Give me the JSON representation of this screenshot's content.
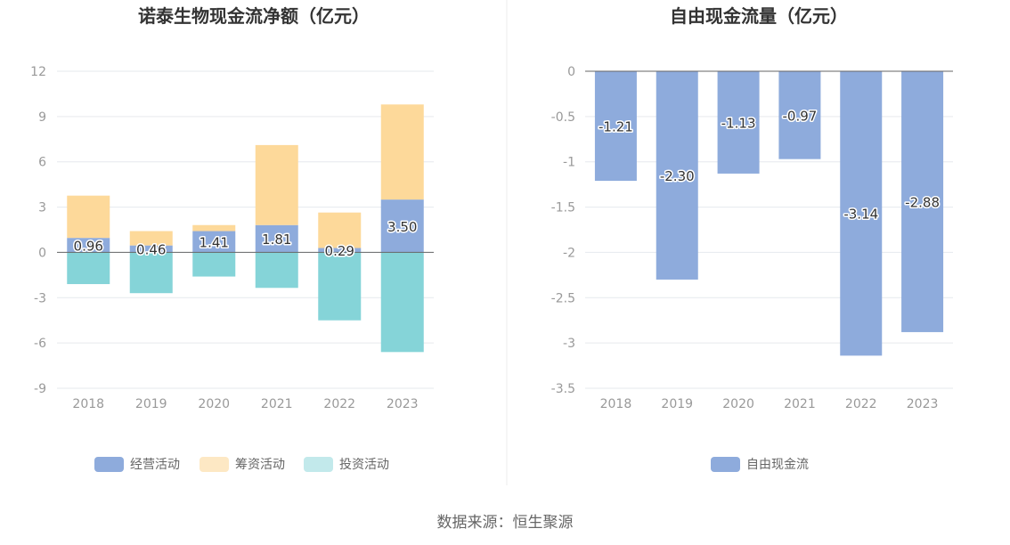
{
  "chart_data": [
    {
      "type": "bar",
      "stacked": true,
      "title": "诺泰生物现金流净额（亿元）",
      "categories": [
        "2018",
        "2019",
        "2020",
        "2021",
        "2022",
        "2023"
      ],
      "y_ticks": [
        "12",
        "9",
        "6",
        "3",
        "0",
        "-3",
        "-6",
        "-9"
      ],
      "ylim": [
        -9,
        12
      ],
      "grid": true,
      "legend_position": "bottom",
      "series": [
        {
          "name": "经营活动",
          "color": "#8eabdc",
          "values": [
            0.96,
            0.46,
            1.41,
            1.81,
            0.29,
            3.5
          ],
          "labels": [
            "0.96",
            "0.46",
            "1.41",
            "1.81",
            "0.29",
            "3.50"
          ]
        },
        {
          "name": "筹资活动",
          "color": "#fdd99a",
          "values": [
            2.8,
            0.95,
            0.4,
            5.3,
            2.35,
            6.3
          ]
        },
        {
          "name": "投资活动",
          "color": "#85d4d8",
          "values": [
            -2.1,
            -2.7,
            -1.6,
            -2.35,
            -4.5,
            -6.6
          ]
        }
      ],
      "legend_colors": [
        "#8eabdc",
        "#fde8c4",
        "#c2e9eb"
      ]
    },
    {
      "type": "bar",
      "title": "自由现金流量（亿元）",
      "categories": [
        "2018",
        "2019",
        "2020",
        "2021",
        "2022",
        "2023"
      ],
      "y_ticks": [
        "0",
        "-0.5",
        "-1",
        "-1.5",
        "-2",
        "-2.5",
        "-3",
        "-3.5"
      ],
      "ylim": [
        -3.5,
        0
      ],
      "grid": true,
      "legend_position": "bottom",
      "series": [
        {
          "name": "自由现金流",
          "color": "#8eabdc",
          "values": [
            -1.21,
            -2.3,
            -1.13,
            -0.97,
            -3.14,
            -2.88
          ],
          "labels": [
            "-1.21",
            "-2.30",
            "-1.13",
            "-0.97",
            "-3.14",
            "-2.88"
          ]
        }
      ]
    }
  ],
  "source_text": "数据来源：恒生聚源"
}
